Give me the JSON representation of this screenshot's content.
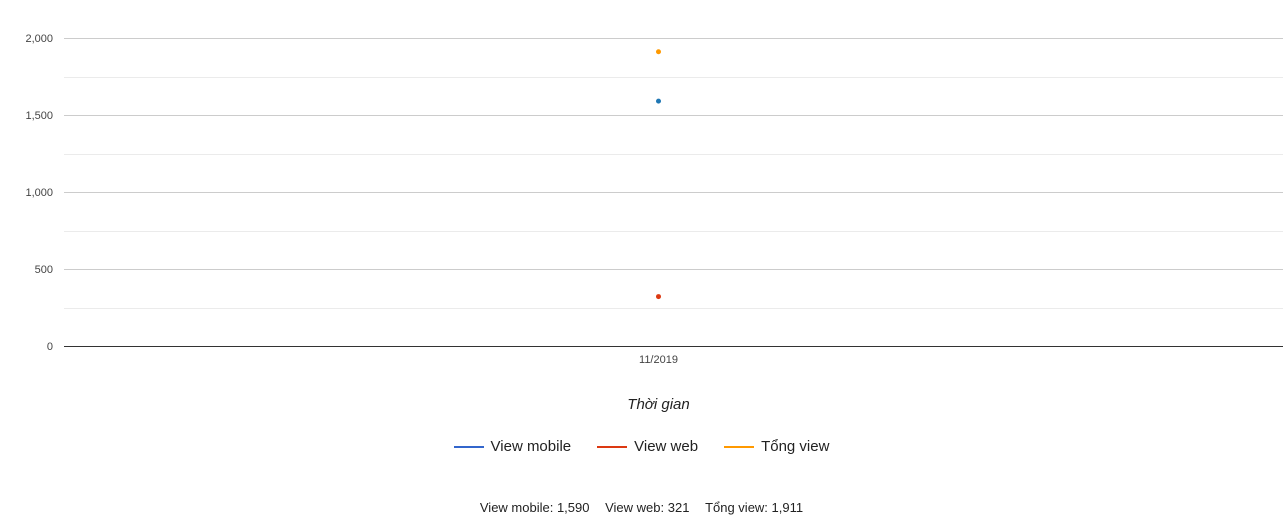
{
  "chart_data": {
    "type": "scatter",
    "categories": [
      "11/2019"
    ],
    "xlabel": "Thời gian",
    "ylabel": "",
    "ylim": [
      0,
      2000
    ],
    "yticks": [
      0,
      500,
      1000,
      1500,
      2000
    ],
    "ytick_labels": [
      "0",
      "500",
      "1,000",
      "1,500",
      "2,000"
    ],
    "grid": true,
    "legend_position": "bottom",
    "series": [
      {
        "name": "View mobile",
        "color": "#3366cc",
        "marker_color": "#1f77b4",
        "values": [
          1590
        ]
      },
      {
        "name": "View web",
        "color": "#dc3912",
        "marker_color": "#dc3912",
        "values": [
          321
        ]
      },
      {
        "name": "Tổng view",
        "color": "#ff9900",
        "marker_color": "#ff9900",
        "values": [
          1911
        ]
      }
    ]
  },
  "legend": {
    "items": [
      {
        "label": "View mobile",
        "color": "#3366cc"
      },
      {
        "label": "View web",
        "color": "#dc3912"
      },
      {
        "label": "Tổng view",
        "color": "#ff9900"
      }
    ]
  },
  "summary": {
    "mobile": "View mobile: 1,590",
    "web": "View web: 321",
    "total": "Tổng view: 1,911"
  }
}
